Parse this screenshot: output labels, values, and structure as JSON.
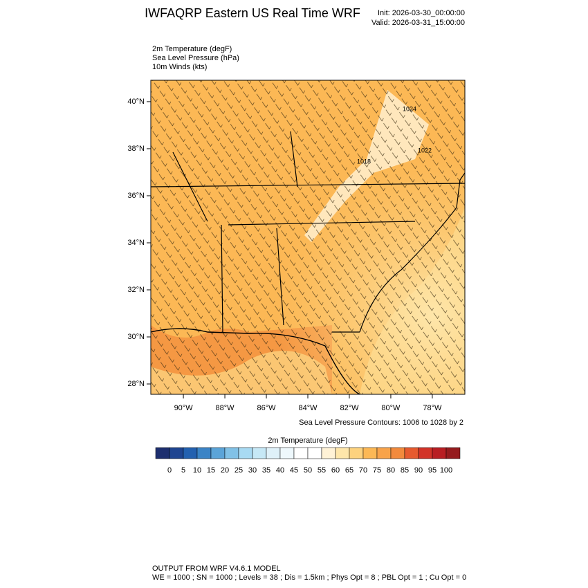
{
  "header": {
    "title": "IWFAQRP Eastern US Real Time WRF",
    "init": "Init: 2026-03-30_00:00:00",
    "valid": "Valid: 2026-03-31_15:00:00"
  },
  "fields": [
    "2m Temperature   (degF)",
    "Sea Level Pressure   (hPa)",
    "10m Winds   (kts)"
  ],
  "map": {
    "ylim": [
      27.56,
      40.91
    ],
    "xlim": [
      -91.57,
      -76.43
    ],
    "yticks": [
      {
        "value": 40,
        "label": "40°N"
      },
      {
        "value": 38,
        "label": "38°N"
      },
      {
        "value": 36,
        "label": "36°N"
      },
      {
        "value": 34,
        "label": "34°N"
      },
      {
        "value": 32,
        "label": "32°N"
      },
      {
        "value": 30,
        "label": "30°N"
      },
      {
        "value": 28,
        "label": "28°N"
      }
    ],
    "xticks": [
      {
        "value": -90,
        "label": "90°W"
      },
      {
        "value": -88,
        "label": "88°W"
      },
      {
        "value": -86,
        "label": "86°W"
      },
      {
        "value": -84,
        "label": "84°W"
      },
      {
        "value": -82,
        "label": "82°W"
      },
      {
        "value": -80,
        "label": "80°W"
      },
      {
        "value": -78,
        "label": "78°W"
      }
    ],
    "contour_note": "Sea Level Pressure Contours: 1006 to 1028 by 2",
    "contour_labels": [
      "1018",
      "1022",
      "1024"
    ]
  },
  "colorbar": {
    "title": "2m Temperature  (degF)",
    "ticks": [
      0,
      5,
      10,
      15,
      20,
      25,
      30,
      35,
      40,
      45,
      50,
      55,
      60,
      65,
      70,
      75,
      80,
      85,
      90,
      95,
      100
    ],
    "colors": [
      "#1d2f6f",
      "#1f4591",
      "#2361b0",
      "#3b84c6",
      "#5ba4d8",
      "#81c1e6",
      "#a8daf3",
      "#c6e8f6",
      "#dff1f9",
      "#eef8fc",
      "#ffffff",
      "#ffffff",
      "#fff2d6",
      "#fee6aa",
      "#fdd27e",
      "#fcb855",
      "#f8a34a",
      "#f28a3c",
      "#e65a2e",
      "#d23328",
      "#b81e23",
      "#951b1e"
    ]
  },
  "footer": [
    "OUTPUT FROM WRF V4.6.1 MODEL",
    "WE = 1000 ; SN = 1000 ; Levels = 38 ; Dis = 1.5km ; Phys Opt = 8 ; PBL Opt = 1 ; Cu Opt = 0"
  ]
}
